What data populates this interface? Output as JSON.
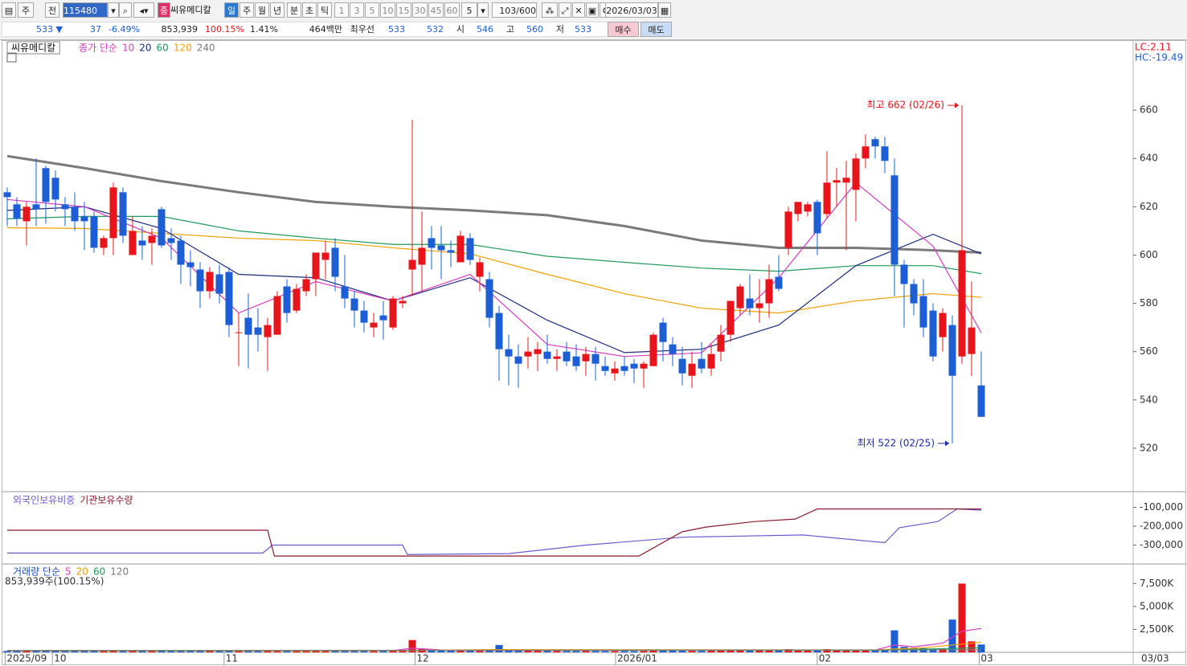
{
  "toolbar": {
    "row1": [
      "주",
      "전",
      "115480",
      "종",
      "씨유메디칼",
      "일",
      "주",
      "월",
      "년",
      "분",
      "초",
      "틱",
      "1",
      "3",
      "5",
      "10",
      "15",
      "30",
      "45",
      "60",
      "5",
      "103/600",
      "2026/03/03"
    ],
    "row2": [
      "533 ▼",
      "37",
      "-6.49%",
      "853,939",
      "100.15%",
      "1.41%",
      "464백만",
      "최우선",
      "533",
      "532",
      "시",
      "546",
      "고",
      "560",
      "저",
      "533",
      "매수",
      "매도"
    ]
  },
  "chart_data": [
    {
      "type": "candlestick",
      "title": "씨유메디칼",
      "subtitle": "종가 단순",
      "xlim": [
        -0.5,
        116.75
      ],
      "ylim": [
        502,
        685
      ],
      "yticks": [
        520,
        540,
        560,
        580,
        600,
        620,
        640,
        660
      ],
      "up_color": "#e8141c",
      "down_color": "#1d5ed6",
      "side_labels": [
        {
          "text": "LC:2.11",
          "color": "#e8141c"
        },
        {
          "text": "HC:-19.49",
          "color": "#1d5ed6"
        }
      ],
      "open": [
        626,
        621,
        614,
        621,
        636,
        632,
        621,
        620,
        616,
        616,
        603,
        607,
        626,
        600,
        606,
        605,
        619,
        607,
        606,
        597,
        594,
        585,
        592,
        593,
        568,
        574,
        570,
        566,
        567,
        587,
        577,
        585,
        590,
        598,
        603,
        587,
        582,
        577,
        570,
        575,
        570,
        580,
        594,
        596,
        607,
        604,
        602,
        597,
        607,
        591,
        590,
        576,
        561,
        558,
        558,
        559,
        560,
        557,
        560,
        558,
        556,
        559,
        554,
        551,
        554,
        555,
        553,
        554,
        572,
        563,
        557,
        550,
        557,
        553,
        560,
        567,
        578,
        582,
        578,
        580,
        591,
        603,
        617,
        618,
        622,
        617,
        630,
        630,
        627,
        640,
        648,
        645,
        633,
        596,
        588,
        583,
        577,
        566,
        571,
        558,
        559,
        546
      ],
      "high": [
        628,
        624,
        622,
        640,
        637,
        635,
        624,
        626,
        622,
        618,
        608,
        630,
        628,
        616,
        612,
        611,
        620,
        611,
        608,
        602,
        597,
        595,
        596,
        595,
        576,
        584,
        578,
        574,
        585,
        590,
        588,
        592,
        601,
        606,
        607,
        600,
        585,
        581,
        576,
        581,
        583,
        583,
        656,
        618,
        612,
        612,
        606,
        610,
        609,
        599,
        593,
        579,
        567,
        563,
        566,
        564,
        567,
        561,
        564,
        563,
        562,
        562,
        558,
        556,
        558,
        557,
        556,
        568,
        574,
        566,
        562,
        560,
        564,
        563,
        571,
        581,
        588,
        592,
        590,
        596,
        600,
        620,
        622,
        622,
        623,
        643,
        636,
        639,
        642,
        650,
        649,
        649,
        640,
        598,
        590,
        590,
        580,
        578,
        575,
        662,
        589,
        560
      ],
      "low": [
        612,
        612,
        604,
        612,
        613,
        618,
        612,
        610,
        602,
        601,
        600,
        600,
        605,
        600,
        598,
        596,
        603,
        598,
        588,
        587,
        578,
        582,
        580,
        566,
        554,
        553,
        560,
        552,
        567,
        572,
        576,
        583,
        583,
        590,
        585,
        578,
        570,
        568,
        566,
        565,
        569,
        578,
        583,
        585,
        594,
        590,
        595,
        597,
        596,
        585,
        570,
        548,
        546,
        545,
        553,
        552,
        555,
        552,
        554,
        552,
        550,
        548,
        550,
        548,
        550,
        547,
        545,
        554,
        556,
        554,
        546,
        545,
        551,
        550,
        556,
        564,
        575,
        575,
        572,
        574,
        585,
        600,
        614,
        616,
        600,
        615,
        620,
        602,
        614,
        636,
        640,
        634,
        583,
        570,
        575,
        566,
        556,
        560,
        522,
        555,
        550,
        533
      ],
      "close": [
        624,
        615,
        620,
        619,
        622,
        623,
        619,
        614,
        614,
        603,
        607,
        628,
        608,
        610,
        604,
        608,
        604,
        605,
        596,
        595,
        585,
        593,
        584,
        571,
        568,
        567,
        567,
        571,
        583,
        576,
        586,
        590,
        601,
        601,
        591,
        582,
        577,
        572,
        572,
        573,
        582,
        581,
        598,
        603,
        603,
        602,
        601,
        608,
        598,
        597,
        574,
        561,
        558,
        555,
        560,
        561,
        557,
        558,
        556,
        554,
        559,
        555,
        552,
        553,
        552,
        553,
        555,
        567,
        564,
        559,
        551,
        555,
        553,
        559,
        567,
        581,
        587,
        578,
        580,
        590,
        586,
        618,
        622,
        621,
        609,
        630,
        631,
        632,
        640,
        645,
        645,
        639,
        596,
        588,
        580,
        570,
        558,
        576,
        550,
        602,
        570,
        533
      ],
      "ma": [
        {
          "name": "10",
          "color": "#d63cc0",
          "x": [
            0,
            8,
            16,
            24,
            32,
            40,
            48,
            56,
            64,
            72,
            80,
            88,
            96,
            101
          ],
          "values": [
            623,
            620,
            607,
            576,
            589,
            581,
            592,
            563,
            558,
            559.5,
            590.6,
            630,
            603.7,
            567.8
          ]
        },
        {
          "name": "20",
          "color": "#1c2a7a",
          "x": [
            0,
            8,
            16,
            24,
            32,
            40,
            48,
            56,
            64,
            72,
            80,
            88,
            96,
            101
          ],
          "values": [
            618.5,
            620,
            611,
            592,
            590.6,
            581,
            590.6,
            573,
            559.6,
            561,
            571,
            595.6,
            608.6,
            600.5
          ]
        },
        {
          "name": "60",
          "color": "#1e9a5a",
          "x": [
            0,
            8,
            16,
            24,
            32,
            40,
            48,
            56,
            64,
            72,
            80,
            88,
            96,
            101
          ],
          "values": [
            615,
            616,
            616,
            610,
            607,
            604.4,
            604.4,
            599.5,
            597,
            594.6,
            593.3,
            595.6,
            595.6,
            592.3
          ]
        },
        {
          "name": "120",
          "color": "#f0a000",
          "x": [
            0,
            8,
            16,
            24,
            32,
            40,
            48,
            56,
            64,
            72,
            80,
            88,
            96,
            101
          ],
          "values": [
            611.3,
            611,
            609,
            607,
            606,
            603,
            600.5,
            592,
            584,
            578,
            576,
            581,
            584,
            582.5
          ]
        },
        {
          "name": "240",
          "color": "#7a7a7a",
          "x": [
            0,
            8,
            16,
            24,
            32,
            40,
            48,
            56,
            64,
            72,
            80,
            88,
            96,
            101
          ],
          "values": [
            641,
            636,
            630.6,
            626,
            622,
            620,
            618.5,
            616.5,
            612,
            606,
            603,
            603,
            602,
            601
          ]
        }
      ],
      "annotations": [
        {
          "text": "최고 662 (02/26)",
          "index": 99,
          "value": 662,
          "color": "#e8141c"
        },
        {
          "text": "최저 522 (02/25)",
          "index": 98,
          "value": 522,
          "color": "#1a2aa0"
        }
      ]
    },
    {
      "type": "line",
      "xlim": [
        -0.5,
        116.75
      ],
      "ylim": [
        -400000,
        -25000
      ],
      "yticks": [
        {
          "value": -100000,
          "label": "-100,000"
        },
        {
          "value": -200000,
          "label": "-200,000"
        },
        {
          "value": -300000,
          "label": "-300,000"
        }
      ],
      "series": [
        {
          "name": "외국인보유비중",
          "color": "#6a5acd",
          "x": [
            0,
            26.5,
            27.5,
            41,
            41.5,
            52,
            60,
            70,
            82.5,
            91,
            92.5,
            96.5,
            98.5,
            101
          ],
          "values": [
            -342000,
            -342000,
            -300000,
            -300000,
            -350000,
            -345000,
            -300000,
            -258000,
            -246000,
            -287000,
            -208000,
            -175000,
            -108000,
            -115000
          ]
        },
        {
          "name": "기관보유수량",
          "color": "#8b1a2a",
          "x": [
            0,
            27,
            27.7,
            65.5,
            70,
            72.5,
            77.5,
            81.7,
            84,
            101
          ],
          "values": [
            -221000,
            -221000,
            -358000,
            -358000,
            -229000,
            -204000,
            -175000,
            -162000,
            -108000,
            -108000
          ]
        }
      ]
    },
    {
      "type": "bar",
      "title": "거래량 단순",
      "subtitle": "853,939주(100.15%)",
      "xlim": [
        -0.5,
        116.75
      ],
      "ylim": [
        0,
        9460
      ],
      "yticks": [
        {
          "value": 2500,
          "label": "2,500K"
        },
        {
          "value": 5000,
          "label": "5,000K"
        },
        {
          "value": 7500,
          "label": "7,500K"
        }
      ],
      "values": [
        150,
        160,
        170,
        200,
        220,
        180,
        150,
        140,
        160,
        180,
        150,
        260,
        200,
        150,
        140,
        150,
        170,
        150,
        160,
        150,
        170,
        150,
        140,
        200,
        180,
        170,
        160,
        150,
        180,
        200,
        170,
        160,
        220,
        200,
        180,
        170,
        150,
        140,
        130,
        140,
        160,
        150,
        1340,
        400,
        300,
        250,
        200,
        220,
        200,
        180,
        300,
        800,
        350,
        250,
        200,
        180,
        170,
        160,
        150,
        150,
        160,
        150,
        140,
        140,
        150,
        140,
        150,
        250,
        220,
        180,
        170,
        160,
        160,
        170,
        200,
        300,
        250,
        220,
        200,
        250,
        220,
        350,
        300,
        250,
        280,
        350,
        300,
        280,
        300,
        250,
        260,
        280,
        2400,
        600,
        500,
        450,
        400,
        350,
        3570,
        7500,
        1200,
        854
      ],
      "series": [
        {
          "name": "5",
          "color": "#d63cc0",
          "x": [
            0,
            40,
            42,
            46,
            90,
            92,
            94,
            97,
            99,
            101
          ],
          "values": [
            200,
            200,
            450,
            200,
            250,
            800,
            600,
            1000,
            2300,
            2600
          ]
        },
        {
          "name": "20",
          "color": "#f0a000",
          "x": [
            0,
            40,
            50,
            90,
            95,
            101
          ],
          "values": [
            170,
            180,
            300,
            260,
            500,
            1100
          ]
        },
        {
          "name": "60",
          "color": "#1e9a5a",
          "x": [
            0,
            90,
            101
          ],
          "values": [
            190,
            230,
            500
          ]
        },
        {
          "name": "120",
          "color": "#7a7a7a",
          "x": [
            0,
            101
          ],
          "values": [
            200,
            260
          ]
        }
      ],
      "xticks": [
        {
          "value": -0.3,
          "label": "2025/09"
        },
        {
          "value": 4.6,
          "label": "10"
        },
        {
          "value": 22.4,
          "label": "11"
        },
        {
          "value": 42.2,
          "label": "12"
        },
        {
          "value": 63,
          "label": "2026/01"
        },
        {
          "value": 83.9,
          "label": "02"
        },
        {
          "value": 100.7,
          "label": "03"
        }
      ],
      "last_date": "03/03"
    }
  ]
}
